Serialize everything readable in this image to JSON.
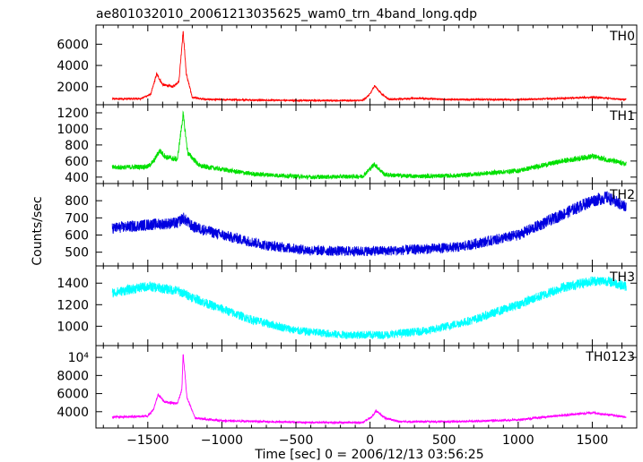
{
  "title": "ae801032010_20061213035625_wam0_trn_4band_long.qdp",
  "chart_data": {
    "type": "line",
    "xlabel": "Time [sec] 0 = 2006/12/13 03:56:25",
    "ylabel": "Counts/sec",
    "xlim": [
      -1850,
      1800
    ],
    "x_ticks": [
      -1500,
      -1000,
      -500,
      0,
      500,
      1000,
      1500
    ],
    "x_tick_labels": [
      "−1500",
      "−1000",
      "−500",
      "0",
      "500",
      "1000",
      "1500"
    ],
    "x_range": [
      -1740,
      1730
    ],
    "grid": false,
    "panels": [
      {
        "name": "TH0",
        "color": "#ff0000",
        "ylim": [
          300,
          7800
        ],
        "y_ticks": [
          2000,
          4000,
          6000
        ],
        "y_tick_labels": [
          "2000",
          "4000",
          "6000"
        ],
        "shape": [
          [
            -1740,
            850
          ],
          [
            -1550,
            870
          ],
          [
            -1480,
            1300
          ],
          [
            -1440,
            3200
          ],
          [
            -1400,
            2200
          ],
          [
            -1330,
            2000
          ],
          [
            -1290,
            2500
          ],
          [
            -1262,
            7200
          ],
          [
            -1240,
            3200
          ],
          [
            -1200,
            1000
          ],
          [
            -1100,
            800
          ],
          [
            -500,
            700
          ],
          [
            -50,
            700
          ],
          [
            0,
            1300
          ],
          [
            30,
            2100
          ],
          [
            80,
            1300
          ],
          [
            130,
            800
          ],
          [
            300,
            900
          ],
          [
            350,
            900
          ],
          [
            500,
            800
          ],
          [
            1000,
            780
          ],
          [
            1300,
            900
          ],
          [
            1500,
            1000
          ],
          [
            1730,
            800
          ]
        ],
        "noise": 70
      },
      {
        "name": "TH1",
        "color": "#00e000",
        "ylim": [
          320,
          1300
        ],
        "y_ticks": [
          400,
          600,
          800,
          1000,
          1200
        ],
        "y_tick_labels": [
          "400",
          "600",
          "800",
          "1000",
          "1200"
        ],
        "shape": [
          [
            -1740,
            520
          ],
          [
            -1500,
            530
          ],
          [
            -1460,
            600
          ],
          [
            -1420,
            730
          ],
          [
            -1380,
            650
          ],
          [
            -1300,
            620
          ],
          [
            -1262,
            1180
          ],
          [
            -1230,
            700
          ],
          [
            -1150,
            540
          ],
          [
            -800,
            440
          ],
          [
            -400,
            400
          ],
          [
            -50,
            410
          ],
          [
            30,
            560
          ],
          [
            100,
            430
          ],
          [
            300,
            410
          ],
          [
            600,
            420
          ],
          [
            1000,
            480
          ],
          [
            1300,
            600
          ],
          [
            1500,
            660
          ],
          [
            1730,
            560
          ]
        ],
        "noise": 30
      },
      {
        "name": "TH2",
        "color": "#0000e0",
        "ylim": [
          420,
          900
        ],
        "y_ticks": [
          500,
          600,
          700,
          800
        ],
        "y_tick_labels": [
          "500",
          "600",
          "700",
          "800"
        ],
        "shape": [
          [
            -1740,
            640
          ],
          [
            -1500,
            660
          ],
          [
            -1300,
            670
          ],
          [
            -1262,
            700
          ],
          [
            -1200,
            650
          ],
          [
            -1000,
            600
          ],
          [
            -700,
            540
          ],
          [
            -400,
            510
          ],
          [
            -100,
            505
          ],
          [
            200,
            510
          ],
          [
            600,
            530
          ],
          [
            1000,
            600
          ],
          [
            1300,
            720
          ],
          [
            1500,
            800
          ],
          [
            1600,
            820
          ],
          [
            1730,
            760
          ]
        ],
        "noise": 33
      },
      {
        "name": "TH3",
        "color": "#00ffff",
        "ylim": [
          820,
          1560
        ],
        "y_ticks": [
          1000,
          1200,
          1400
        ],
        "y_tick_labels": [
          "1000",
          "1200",
          "1400"
        ],
        "shape": [
          [
            -1740,
            1310
          ],
          [
            -1500,
            1370
          ],
          [
            -1300,
            1330
          ],
          [
            -1100,
            1210
          ],
          [
            -800,
            1060
          ],
          [
            -500,
            960
          ],
          [
            -200,
            920
          ],
          [
            100,
            920
          ],
          [
            400,
            960
          ],
          [
            700,
            1060
          ],
          [
            1000,
            1200
          ],
          [
            1300,
            1360
          ],
          [
            1500,
            1420
          ],
          [
            1600,
            1420
          ],
          [
            1730,
            1370
          ]
        ],
        "noise": 45
      },
      {
        "name": "TH0123",
        "color": "#ff00ff",
        "ylim": [
          2200,
          11300
        ],
        "y_ticks": [
          4000,
          6000,
          8000,
          10000
        ],
        "y_tick_labels": [
          "4000",
          "6000",
          "8000",
          "10⁴"
        ],
        "shape": [
          [
            -1740,
            3400
          ],
          [
            -1500,
            3500
          ],
          [
            -1460,
            4300
          ],
          [
            -1430,
            5900
          ],
          [
            -1390,
            5100
          ],
          [
            -1300,
            4900
          ],
          [
            -1270,
            6500
          ],
          [
            -1262,
            10400
          ],
          [
            -1235,
            5500
          ],
          [
            -1180,
            3300
          ],
          [
            -1000,
            3000
          ],
          [
            -400,
            2800
          ],
          [
            -50,
            2800
          ],
          [
            10,
            3400
          ],
          [
            40,
            4100
          ],
          [
            100,
            3300
          ],
          [
            200,
            2900
          ],
          [
            600,
            2900
          ],
          [
            1000,
            3100
          ],
          [
            1300,
            3600
          ],
          [
            1500,
            3900
          ],
          [
            1730,
            3400
          ]
        ],
        "noise": 110
      }
    ]
  }
}
